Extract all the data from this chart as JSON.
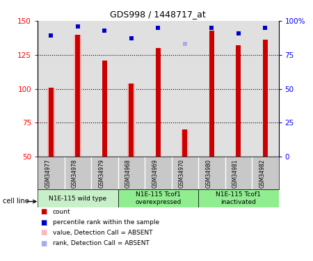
{
  "title": "GDS998 / 1448717_at",
  "samples": [
    "GSM34977",
    "GSM34978",
    "GSM34979",
    "GSM34968",
    "GSM34969",
    "GSM34970",
    "GSM34980",
    "GSM34981",
    "GSM34982"
  ],
  "group_labels": [
    "N1E-115 wild type",
    "N1E-115 Tcof1\noverexpressed",
    "N1E-115 Tcof1\ninactivated"
  ],
  "group_colors": [
    "#c8f0c8",
    "#90ee90",
    "#90ee90"
  ],
  "group_ranges": [
    [
      0,
      3
    ],
    [
      3,
      6
    ],
    [
      6,
      9
    ]
  ],
  "bar_values": [
    101,
    140,
    121,
    104,
    130,
    70,
    143,
    132,
    136
  ],
  "absent_values": [
    101,
    140,
    null,
    104,
    null,
    70,
    null,
    null,
    null
  ],
  "percentile_values": [
    89,
    96,
    93,
    87,
    95,
    83,
    95,
    91,
    95
  ],
  "percentile_absent": [
    false,
    false,
    false,
    false,
    false,
    true,
    false,
    false,
    false
  ],
  "ylim_left": [
    50,
    150
  ],
  "yticks_left": [
    50,
    75,
    100,
    125,
    150
  ],
  "yticks_right": [
    0,
    25,
    50,
    75,
    100
  ],
  "yticklabels_right": [
    "0",
    "25",
    "50",
    "75",
    "100%"
  ],
  "dotted_lines": [
    75,
    100,
    125
  ],
  "red_color": "#cc0000",
  "pink_color": "#ffb6b6",
  "blue_color": "#0000cc",
  "lightblue_color": "#aaaaee",
  "plot_bg_color": "#e0e0e0",
  "sample_bg_color": "#c8c8c8",
  "cell_line_label": "cell line",
  "legend_items": [
    {
      "color": "#cc0000",
      "label": "count"
    },
    {
      "color": "#0000cc",
      "label": "percentile rank within the sample"
    },
    {
      "color": "#ffb6b6",
      "label": "value, Detection Call = ABSENT"
    },
    {
      "color": "#aaaaee",
      "label": "rank, Detection Call = ABSENT"
    }
  ]
}
